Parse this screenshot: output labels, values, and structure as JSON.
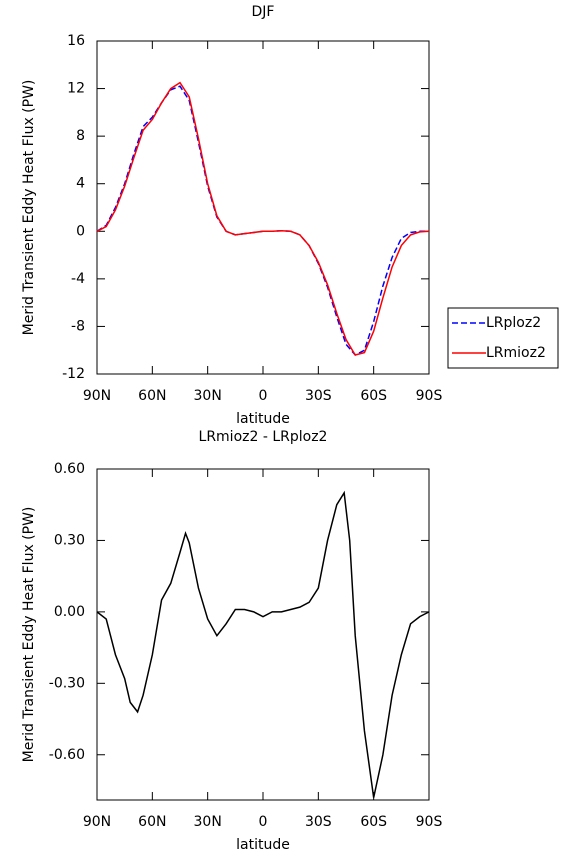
{
  "chart_data": [
    {
      "type": "line",
      "title": "DJF",
      "xlabel": "latitude",
      "ylabel": "Merid Transient Eddy Heat Flux (PW)",
      "x": [
        90,
        85,
        80,
        75,
        70,
        65,
        60,
        55,
        50,
        45,
        40,
        35,
        30,
        25,
        20,
        15,
        10,
        5,
        0,
        -5,
        -10,
        -15,
        -20,
        -25,
        -30,
        -35,
        -40,
        -45,
        -50,
        -55,
        -60,
        -65,
        -70,
        -75,
        -80,
        -85,
        -90
      ],
      "series": [
        {
          "name": "LRploz2",
          "color": "#0000ff",
          "style": "dashed",
          "values": [
            0,
            0.5,
            2,
            4,
            6.5,
            8.8,
            9.6,
            10.8,
            11.9,
            12.2,
            11,
            7.5,
            3.8,
            1.2,
            0,
            -0.3,
            -0.2,
            -0.1,
            0,
            0,
            0.05,
            0,
            -0.3,
            -1.2,
            -2.7,
            -4.7,
            -7.2,
            -9.5,
            -10.4,
            -10,
            -7.6,
            -4.6,
            -2.2,
            -0.6,
            -0.1,
            0,
            0
          ]
        },
        {
          "name": "LRmioz2",
          "color": "#ff0000",
          "style": "solid",
          "values": [
            0,
            0.4,
            1.8,
            3.8,
            6.2,
            8.5,
            9.4,
            10.8,
            12,
            12.5,
            11.3,
            7.8,
            4,
            1.3,
            0,
            -0.3,
            -0.2,
            -0.1,
            0,
            0,
            0.05,
            0,
            -0.3,
            -1.2,
            -2.6,
            -4.5,
            -6.9,
            -9.1,
            -10.4,
            -10.2,
            -8.4,
            -5.6,
            -3,
            -1.2,
            -0.3,
            -0.05,
            0
          ]
        }
      ],
      "xlim": [
        90,
        -90
      ],
      "xticks": [
        {
          "value": 90,
          "label": "90N"
        },
        {
          "value": 60,
          "label": "60N"
        },
        {
          "value": 30,
          "label": "30N"
        },
        0,
        {
          "value": -30,
          "label": "30S"
        },
        {
          "value": -60,
          "label": "60S"
        },
        {
          "value": -90,
          "label": "90S"
        }
      ],
      "ylim": [
        -12,
        16
      ],
      "yticks": [
        16,
        12,
        8,
        4,
        0,
        -4,
        -8,
        -12
      ],
      "legend": "right"
    },
    {
      "type": "line",
      "title": "LRmioz2 - LRploz2",
      "xlabel": "latitude",
      "ylabel": "Merid Transient Eddy Heat Flux (PW)",
      "x": [
        90,
        85,
        80,
        75,
        72,
        68,
        65,
        60,
        55,
        50,
        45,
        42,
        40,
        35,
        30,
        25,
        20,
        15,
        10,
        5,
        0,
        -5,
        -10,
        -15,
        -20,
        -25,
        -30,
        -35,
        -40,
        -44,
        -47,
        -50,
        -55,
        -60,
        -65,
        -70,
        -75,
        -80,
        -85,
        -90
      ],
      "series": [
        {
          "color": "#000000",
          "style": "solid",
          "values": [
            0,
            -0.03,
            -0.18,
            -0.28,
            -0.38,
            -0.42,
            -0.35,
            -0.18,
            0.05,
            0.12,
            0.25,
            0.33,
            0.29,
            0.1,
            -0.03,
            -0.1,
            -0.05,
            0.01,
            0.01,
            0,
            -0.02,
            0,
            0,
            0.01,
            0.02,
            0.04,
            0.1,
            0.3,
            0.45,
            0.5,
            0.3,
            -0.1,
            -0.5,
            -0.78,
            -0.6,
            -0.35,
            -0.18,
            -0.05,
            -0.02,
            0
          ]
        }
      ],
      "xlim": [
        90,
        -90
      ],
      "xticks": [
        {
          "value": 90,
          "label": "90N"
        },
        {
          "value": 60,
          "label": "60N"
        },
        {
          "value": 30,
          "label": "30N"
        },
        0,
        {
          "value": -30,
          "label": "30S"
        },
        {
          "value": -60,
          "label": "60S"
        },
        {
          "value": -90,
          "label": "90S"
        }
      ],
      "ylim": [
        -0.79,
        0.6
      ],
      "yticks": [
        {
          "value": 0.6,
          "label": "0.60"
        },
        {
          "value": 0.3,
          "label": "0.30"
        },
        {
          "value": 0,
          "label": "0.00"
        },
        {
          "value": -0.3,
          "label": "-0.30"
        },
        {
          "value": -0.6,
          "label": "-0.60"
        }
      ]
    }
  ]
}
